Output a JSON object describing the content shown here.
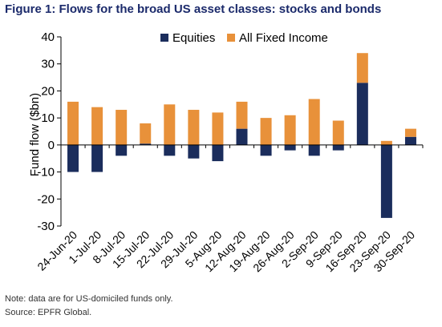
{
  "figure_title": "Figure 1: Flows for the broad US asset classes: stocks and bonds",
  "notes": {
    "note": "Note: data are for US-domiciled funds only.",
    "source": "Source: EPFR Global."
  },
  "colors": {
    "equities": "#1b2d5c",
    "fixed_income": "#e8913a",
    "title": "#1b2a6b",
    "axis": "#000000"
  },
  "chart_data": {
    "type": "bar",
    "stacked": true,
    "title": "Figure 1: Flows for the broad US asset classes: stocks and bonds",
    "xlabel": "",
    "ylabel": "Fund flow ($bn)",
    "ylim": [
      -30,
      40
    ],
    "yticks": [
      -30,
      -20,
      -10,
      0,
      10,
      20,
      30,
      40
    ],
    "grid": false,
    "legend_position": "top-center",
    "categories": [
      "24-Jun-20",
      "1-Jul-20",
      "8-Jul-20",
      "15-Jul-20",
      "22-Jul-20",
      "29-Jul-20",
      "5-Aug-20",
      "12-Aug-20",
      "19-Aug-20",
      "26-Aug-20",
      "2-Sep-20",
      "9-Sep-20",
      "16-Sep-20",
      "23-Sep-20",
      "30-Sep-20"
    ],
    "series": [
      {
        "name": "Equities",
        "color": "#1b2d5c",
        "values": [
          -10,
          -10,
          -4,
          0.5,
          -4,
          -5,
          -6,
          6,
          -4,
          -2,
          -4,
          -2,
          23,
          -27,
          3
        ]
      },
      {
        "name": "All Fixed Income",
        "color": "#e8913a",
        "values": [
          16,
          14,
          13,
          7.5,
          15,
          13,
          12,
          10,
          10,
          11,
          17,
          9,
          11,
          1.5,
          3
        ]
      }
    ]
  }
}
